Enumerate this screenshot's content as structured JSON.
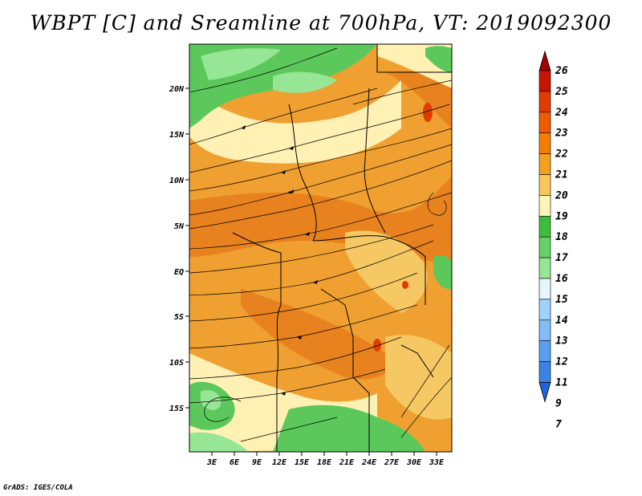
{
  "title": "WBPT [C] and Sreamline at 700hPa, VT: 2019092300",
  "credit": "GrADS: IGES/COLA",
  "map": {
    "lat_labels": [
      "20N",
      "15N",
      "10N",
      "5N",
      "EQ",
      "5S",
      "10S",
      "15S"
    ],
    "lon_labels": [
      "3E",
      "6E",
      "9E",
      "12E",
      "15E",
      "18E",
      "21E",
      "24E",
      "27E",
      "30E",
      "33E"
    ]
  },
  "colorbar": {
    "levels": [
      "26",
      "25",
      "24",
      "23",
      "22",
      "21",
      "20",
      "19",
      "18",
      "17",
      "16",
      "15",
      "14",
      "13",
      "12",
      "11",
      "9",
      "7"
    ],
    "colors": [
      "#a50000",
      "#c81400",
      "#e13c00",
      "#f05a00",
      "#f57d00",
      "#f5a01e",
      "#fac85a",
      "#fff5b4",
      "#3cbe3c",
      "#64d264",
      "#96e696",
      "#e6f5ff",
      "#a0d2fa",
      "#82bef5",
      "#5aa0f0",
      "#3c82e6",
      "#1e64dc"
    ]
  },
  "colors": {
    "warm_orange": "#f0a030",
    "deep_orange": "#e8821e",
    "pale_yellow": "#fff0b4",
    "green": "#5cc85c",
    "light_green": "#96e696"
  }
}
